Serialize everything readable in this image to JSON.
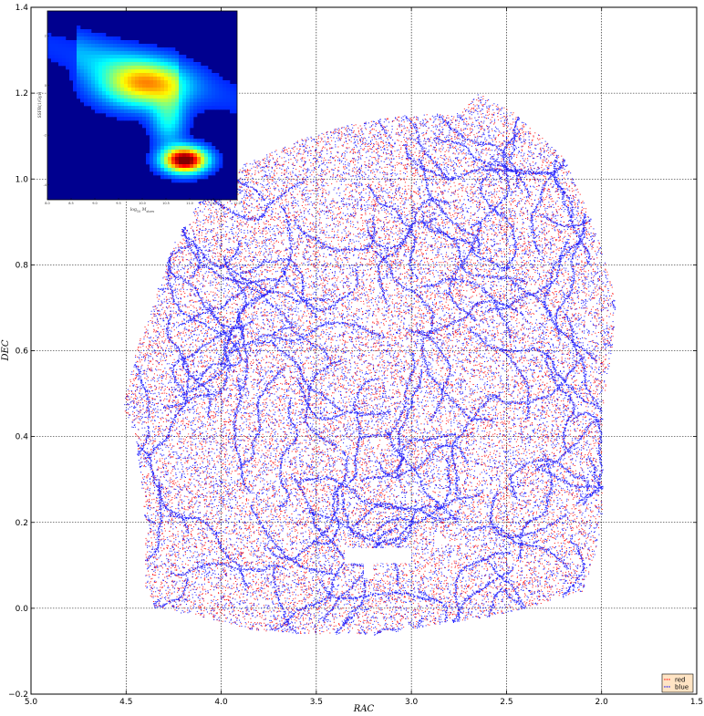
{
  "chart_data": [
    {
      "type": "scatter",
      "title": "",
      "xlabel": "RAC",
      "ylabel": "DEC",
      "xlim": [
        5.0,
        1.5
      ],
      "ylim": [
        -0.2,
        1.4
      ],
      "x_inverted": true,
      "xticks": [
        5.0,
        4.5,
        4.0,
        3.5,
        3.0,
        2.5,
        2.0,
        1.5
      ],
      "xtick_labels": [
        "5.0",
        "4.5",
        "4.0",
        "3.5",
        "3.0",
        "2.5",
        "2.0",
        "1.5"
      ],
      "yticks": [
        -0.2,
        0.0,
        0.2,
        0.4,
        0.6,
        0.8,
        1.0,
        1.2,
        1.4
      ],
      "ytick_labels": [
        "−0.2",
        "0.0",
        "0.2",
        "0.4",
        "0.6",
        "0.8",
        "1.0",
        "1.2",
        "1.4"
      ],
      "grid": true,
      "legend_position": "bottom-right",
      "series": [
        {
          "name": "red",
          "color": "#ff0000",
          "marker": "dot"
        },
        {
          "name": "blue",
          "color": "#0000ff",
          "marker": "dot"
        }
      ],
      "footprint": {
        "ra": [
          4.5,
          4.45,
          4.35,
          4.25,
          4.1,
          3.9,
          3.6,
          3.3,
          3.0,
          2.75,
          2.65,
          2.45,
          2.2,
          2.05,
          1.95,
          1.93,
          1.95,
          2.0,
          2.0,
          2.05,
          2.1,
          2.4,
          2.6,
          2.9,
          3.2,
          3.55,
          3.85,
          4.1,
          4.35,
          4.4,
          4.4,
          4.45,
          4.52
        ],
        "dec": [
          0.5,
          0.6,
          0.72,
          0.85,
          0.96,
          1.03,
          1.09,
          1.13,
          1.15,
          1.15,
          1.2,
          1.15,
          1.05,
          0.9,
          0.76,
          0.68,
          0.6,
          0.45,
          0.2,
          0.1,
          0.04,
          0.0,
          -0.02,
          -0.04,
          -0.06,
          -0.06,
          -0.05,
          -0.02,
          0.0,
          0.05,
          0.2,
          0.4,
          0.47
        ]
      },
      "masked_regions": [
        {
          "ra": [
            3.35,
            3.0
          ],
          "dec": [
            0.105,
            0.14
          ]
        },
        {
          "ra": [
            3.25,
            3.2
          ],
          "dec": [
            0.07,
            0.105
          ]
        },
        {
          "ra": [
            2.88,
            2.84
          ],
          "dec": [
            0.14,
            0.175
          ]
        }
      ]
    },
    {
      "type": "heatmap",
      "role": "inset",
      "xlabel": "log10 M_stars",
      "ylabel": "SSFR(1/Gyr)",
      "xticks": [
        "8.0",
        "8.5",
        "9.0",
        "9.5",
        "10.0",
        "10.5",
        "11.0",
        "11.5",
        "12.0"
      ],
      "yticks": [
        "2",
        "0",
        "-2",
        "-4"
      ],
      "colormap": "jet",
      "peaks": [
        {
          "x": 10.0,
          "y": 0.0,
          "intensity": 0.6
        },
        {
          "x": 10.9,
          "y": -3.0,
          "intensity": 1.0
        }
      ]
    }
  ]
}
